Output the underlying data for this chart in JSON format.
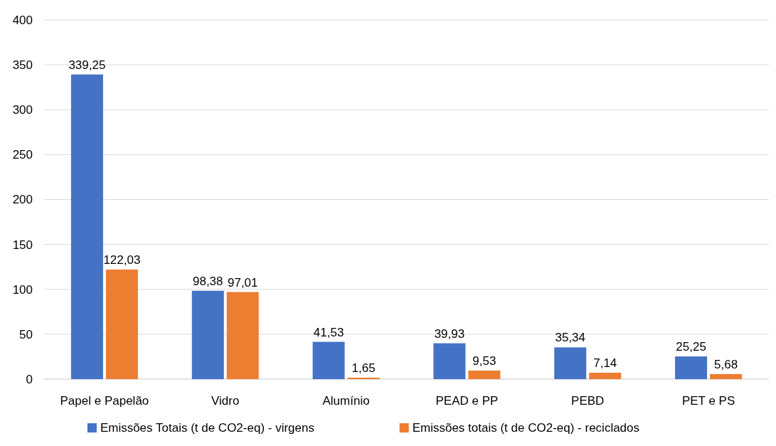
{
  "chart_data": {
    "type": "bar",
    "categories": [
      "Papel e Papelão",
      "Vidro",
      "Alumínio",
      "PEAD e PP",
      "PEBD",
      "PET e PS"
    ],
    "series": [
      {
        "name": "Emissões Totais (t de CO2-eq) - virgens",
        "color": "#4472c4",
        "values": [
          339.25,
          98.38,
          41.53,
          39.93,
          35.34,
          25.25
        ],
        "value_labels": [
          "339,25",
          "98,38",
          "41,53",
          "39,93",
          "35,34",
          "25,25"
        ]
      },
      {
        "name": "Emissões totais (t de CO2-eq) - reciclados",
        "color": "#ed7d31",
        "values": [
          122.03,
          97.01,
          1.65,
          9.53,
          7.14,
          5.68
        ],
        "value_labels": [
          "122,03",
          "97,01",
          "1,65",
          "9,53",
          "7,14",
          "5,68"
        ]
      }
    ],
    "ylim": [
      0,
      400
    ],
    "yticks": [
      0,
      50,
      100,
      150,
      200,
      250,
      300,
      350,
      400
    ],
    "grid": "y",
    "legend": "bottom"
  }
}
